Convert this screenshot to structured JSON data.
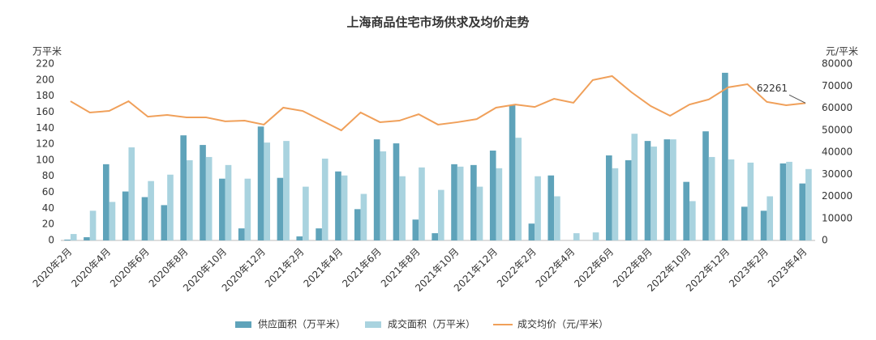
{
  "chart_data": {
    "type": "bar-line",
    "title": "上海商品住宅市场供求及均价走势",
    "y_label": "万平米",
    "y2_label": "元/平米",
    "categories": [
      "2020年2月",
      null,
      "2020年4月",
      null,
      "2020年6月",
      null,
      "2020年8月",
      null,
      "2020年10月",
      null,
      "2020年12月",
      null,
      "2021年2月",
      null,
      "2021年4月",
      null,
      "2021年6月",
      null,
      "2021年8月",
      null,
      "2021年10月",
      null,
      "2021年12月",
      null,
      "2022年2月",
      null,
      "2022年4月",
      null,
      "2022年6月",
      null,
      "2022年8月",
      null,
      "2022年10月",
      null,
      "2022年12月",
      null,
      "2023年2月",
      null,
      "2023年4月"
    ],
    "series": [
      {
        "name": "供应面积（万平米）",
        "color": "#5fa3ba",
        "kind": "bar",
        "values": [
          1,
          4,
          95,
          61,
          54,
          44,
          131,
          119,
          77,
          15,
          142,
          78,
          5,
          15,
          86,
          39,
          126,
          121,
          26,
          9,
          95,
          94,
          112,
          169,
          21,
          81,
          0,
          0,
          106,
          100,
          124,
          126,
          73,
          136,
          209,
          42,
          37,
          96,
          71
        ]
      },
      {
        "name": "成交面积（万平米）",
        "color": "#a9d3df",
        "kind": "bar",
        "values": [
          8,
          37,
          48,
          116,
          74,
          82,
          100,
          104,
          94,
          77,
          122,
          124,
          67,
          102,
          81,
          58,
          111,
          80,
          91,
          63,
          92,
          67,
          90,
          128,
          80,
          55,
          9,
          10,
          90,
          133,
          117,
          126,
          49,
          104,
          101,
          97,
          55,
          98,
          89
        ]
      },
      {
        "name": "成交均价（元/平米）",
        "color": "#f0a05a",
        "kind": "line",
        "axis": "y2",
        "values": [
          63100,
          58000,
          58700,
          63100,
          56100,
          56900,
          55800,
          55800,
          54000,
          54300,
          52500,
          60200,
          58700,
          54300,
          49900,
          58000,
          53600,
          54300,
          57200,
          52500,
          53600,
          55000,
          60200,
          61600,
          60500,
          64200,
          62400,
          72700,
          74500,
          67200,
          60900,
          56500,
          61600,
          63900,
          69400,
          70800,
          62800,
          61300,
          62261
        ]
      }
    ],
    "ylim": [
      0,
      220
    ],
    "yticks": [
      0,
      20,
      40,
      60,
      80,
      100,
      120,
      140,
      160,
      180,
      200,
      220
    ],
    "y2lim": [
      0,
      80000
    ],
    "y2ticks": [
      0,
      10000,
      20000,
      30000,
      40000,
      50000,
      60000,
      70000,
      80000
    ],
    "labeled_point": 38
  }
}
